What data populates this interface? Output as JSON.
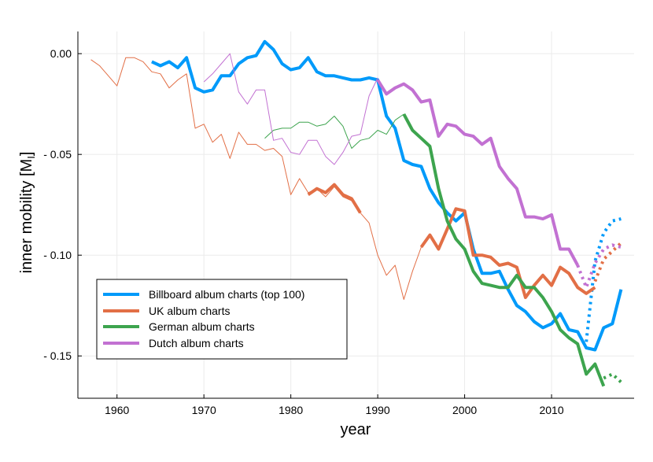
{
  "chart_data": {
    "type": "line",
    "title": "",
    "xlabel": "year",
    "ylabel_main": "inner mobility [M",
    "ylabel_sub": "I",
    "ylabel_close": "]",
    "xlim": [
      1955.5,
      2019.5
    ],
    "ylim": [
      -0.171,
      0.011
    ],
    "xticks": [
      1960,
      1970,
      1980,
      1990,
      2000,
      2010
    ],
    "xtick_labels": [
      "1960",
      "1970",
      "1980",
      "1990",
      "2000",
      "2010"
    ],
    "yticks": [
      0.0,
      -0.05,
      -0.1,
      -0.15
    ],
    "ytick_labels": [
      "0.00",
      "- 0.05",
      "- 0.10",
      "- 0.15"
    ],
    "grid": true,
    "legend_position": "bottom-left",
    "series": [
      {
        "name": "Billboard album charts (top 100)",
        "color": "#009AFA",
        "thin": [],
        "thick": [
          [
            1964,
            -0.004
          ],
          [
            1965,
            -0.006
          ],
          [
            1966,
            -0.004
          ],
          [
            1967,
            -0.007
          ],
          [
            1968,
            -0.002
          ],
          [
            1969,
            -0.017
          ],
          [
            1970,
            -0.019
          ],
          [
            1971,
            -0.018
          ],
          [
            1972,
            -0.011
          ],
          [
            1973,
            -0.011
          ],
          [
            1974,
            -0.005
          ],
          [
            1975,
            -0.002
          ],
          [
            1976,
            -0.001
          ],
          [
            1977,
            0.006
          ],
          [
            1978,
            0.002
          ],
          [
            1979,
            -0.005
          ],
          [
            1980,
            -0.008
          ],
          [
            1981,
            -0.007
          ],
          [
            1982,
            -0.002
          ],
          [
            1983,
            -0.009
          ],
          [
            1984,
            -0.011
          ],
          [
            1985,
            -0.011
          ],
          [
            1986,
            -0.012
          ],
          [
            1987,
            -0.013
          ],
          [
            1988,
            -0.013
          ],
          [
            1989,
            -0.012
          ],
          [
            1990,
            -0.013
          ],
          [
            1991,
            -0.031
          ],
          [
            1992,
            -0.037
          ],
          [
            1993,
            -0.053
          ],
          [
            1994,
            -0.055
          ],
          [
            1995,
            -0.056
          ],
          [
            1996,
            -0.067
          ],
          [
            1997,
            -0.074
          ],
          [
            1998,
            -0.079
          ],
          [
            1999,
            -0.083
          ],
          [
            2000,
            -0.079
          ],
          [
            2001,
            -0.097
          ],
          [
            2002,
            -0.109
          ],
          [
            2003,
            -0.109
          ],
          [
            2004,
            -0.108
          ],
          [
            2005,
            -0.117
          ],
          [
            2006,
            -0.125
          ],
          [
            2007,
            -0.128
          ],
          [
            2008,
            -0.133
          ],
          [
            2009,
            -0.136
          ],
          [
            2010,
            -0.134
          ],
          [
            2011,
            -0.129
          ],
          [
            2012,
            -0.137
          ],
          [
            2013,
            -0.138
          ],
          [
            2014,
            -0.146
          ],
          [
            2015,
            -0.147
          ],
          [
            2016,
            -0.136
          ],
          [
            2017,
            -0.134
          ],
          [
            2018,
            -0.117
          ]
        ],
        "dotted": [
          [
            2014,
            -0.143
          ],
          [
            2015,
            -0.103
          ],
          [
            2016,
            -0.089
          ],
          [
            2017,
            -0.083
          ],
          [
            2018,
            -0.082
          ]
        ]
      },
      {
        "name": "UK album charts",
        "color": "#E26F46",
        "thin": [
          [
            1957,
            -0.003
          ],
          [
            1958,
            -0.006
          ],
          [
            1959,
            -0.011
          ],
          [
            1960,
            -0.016
          ],
          [
            1961,
            -0.002
          ],
          [
            1962,
            -0.002
          ],
          [
            1963,
            -0.004
          ],
          [
            1964,
            -0.009
          ],
          [
            1965,
            -0.01
          ],
          [
            1966,
            -0.017
          ],
          [
            1967,
            -0.013
          ],
          [
            1968,
            -0.01
          ],
          [
            1969,
            -0.037
          ],
          [
            1970,
            -0.035
          ],
          [
            1971,
            -0.044
          ],
          [
            1972,
            -0.04
          ],
          [
            1973,
            -0.052
          ],
          [
            1974,
            -0.039
          ],
          [
            1975,
            -0.045
          ],
          [
            1976,
            -0.045
          ],
          [
            1977,
            -0.048
          ],
          [
            1978,
            -0.047
          ],
          [
            1979,
            -0.051
          ],
          [
            1980,
            -0.07
          ],
          [
            1981,
            -0.062
          ],
          [
            1982,
            -0.069
          ],
          [
            1983,
            -0.067
          ],
          [
            1984,
            -0.071
          ],
          [
            1985,
            -0.066
          ],
          [
            1986,
            -0.071
          ],
          [
            1987,
            -0.073
          ],
          [
            1988,
            -0.079
          ],
          [
            1989,
            -0.084
          ],
          [
            1990,
            -0.1
          ],
          [
            1991,
            -0.11
          ],
          [
            1992,
            -0.105
          ],
          [
            1993,
            -0.122
          ],
          [
            1994,
            -0.108
          ],
          [
            1995,
            -0.096
          ]
        ],
        "thick": [
          [
            1982,
            -0.07
          ],
          [
            1983,
            -0.067
          ],
          [
            1984,
            -0.069
          ],
          [
            1985,
            -0.065
          ],
          [
            1986,
            -0.07
          ],
          [
            1987,
            -0.072
          ],
          [
            1988,
            -0.079
          ],
          [
            null,
            null
          ],
          [
            1995,
            -0.096
          ],
          [
            1996,
            -0.09
          ],
          [
            1997,
            -0.097
          ],
          [
            1998,
            -0.087
          ],
          [
            1999,
            -0.077
          ],
          [
            2000,
            -0.078
          ],
          [
            2001,
            -0.1
          ],
          [
            2002,
            -0.1
          ],
          [
            2003,
            -0.101
          ],
          [
            2004,
            -0.105
          ],
          [
            2005,
            -0.104
          ],
          [
            2006,
            -0.106
          ],
          [
            2007,
            -0.121
          ],
          [
            2008,
            -0.115
          ],
          [
            2009,
            -0.11
          ],
          [
            2010,
            -0.115
          ],
          [
            2011,
            -0.106
          ],
          [
            2012,
            -0.109
          ],
          [
            2013,
            -0.116
          ],
          [
            2014,
            -0.119
          ],
          [
            2015,
            -0.116
          ]
        ],
        "dotted": [
          [
            2015,
            -0.113
          ],
          [
            2016,
            -0.102
          ],
          [
            2017,
            -0.098
          ],
          [
            2018,
            -0.094
          ]
        ]
      },
      {
        "name": "German album charts",
        "color": "#3DA44E",
        "thin": [
          [
            1977,
            -0.042
          ],
          [
            1978,
            -0.038
          ],
          [
            1979,
            -0.037
          ],
          [
            1980,
            -0.037
          ],
          [
            1981,
            -0.034
          ],
          [
            1982,
            -0.034
          ],
          [
            1983,
            -0.036
          ],
          [
            1984,
            -0.035
          ],
          [
            1985,
            -0.031
          ],
          [
            1986,
            -0.036
          ],
          [
            1987,
            -0.047
          ],
          [
            1988,
            -0.043
          ],
          [
            1989,
            -0.042
          ],
          [
            1990,
            -0.038
          ],
          [
            1991,
            -0.04
          ],
          [
            1992,
            -0.033
          ],
          [
            1993,
            -0.03
          ]
        ],
        "thick": [
          [
            1993,
            -0.03
          ],
          [
            1994,
            -0.038
          ],
          [
            1995,
            -0.042
          ],
          [
            1996,
            -0.046
          ],
          [
            1997,
            -0.067
          ],
          [
            1998,
            -0.083
          ],
          [
            1999,
            -0.092
          ],
          [
            2000,
            -0.097
          ],
          [
            2001,
            -0.108
          ],
          [
            2002,
            -0.114
          ],
          [
            2003,
            -0.115
          ],
          [
            2004,
            -0.116
          ],
          [
            2005,
            -0.116
          ],
          [
            2006,
            -0.11
          ],
          [
            2007,
            -0.116
          ],
          [
            2008,
            -0.116
          ],
          [
            2009,
            -0.121
          ],
          [
            2010,
            -0.128
          ],
          [
            2011,
            -0.137
          ],
          [
            2012,
            -0.141
          ],
          [
            2013,
            -0.144
          ],
          [
            2014,
            -0.159
          ],
          [
            2015,
            -0.154
          ],
          [
            2016,
            -0.165
          ]
        ],
        "dotted": [
          [
            2016,
            -0.161
          ],
          [
            2017,
            -0.159
          ],
          [
            2018,
            -0.163
          ]
        ]
      },
      {
        "name": "Dutch album charts",
        "color": "#C271D2",
        "thin": [
          [
            1970,
            -0.014
          ],
          [
            1971,
            -0.01
          ],
          [
            1972,
            -0.005
          ],
          [
            1973,
            0.0
          ],
          [
            1974,
            -0.019
          ],
          [
            1975,
            -0.025
          ],
          [
            1976,
            -0.018
          ],
          [
            1977,
            -0.018
          ],
          [
            1978,
            -0.043
          ],
          [
            1979,
            -0.042
          ],
          [
            1980,
            -0.049
          ],
          [
            1981,
            -0.05
          ],
          [
            1982,
            -0.043
          ],
          [
            1983,
            -0.043
          ],
          [
            1984,
            -0.051
          ],
          [
            1985,
            -0.055
          ],
          [
            1986,
            -0.049
          ],
          [
            1987,
            -0.041
          ],
          [
            1988,
            -0.04
          ],
          [
            1989,
            -0.021
          ],
          [
            1990,
            -0.012
          ]
        ],
        "thick": [
          [
            1990,
            -0.013
          ],
          [
            1991,
            -0.02
          ],
          [
            1992,
            -0.017
          ],
          [
            1993,
            -0.015
          ],
          [
            1994,
            -0.018
          ],
          [
            1995,
            -0.024
          ],
          [
            1996,
            -0.023
          ],
          [
            1997,
            -0.041
          ],
          [
            1998,
            -0.035
          ],
          [
            1999,
            -0.036
          ],
          [
            2000,
            -0.04
          ],
          [
            2001,
            -0.041
          ],
          [
            2002,
            -0.045
          ],
          [
            2003,
            -0.042
          ],
          [
            2004,
            -0.056
          ],
          [
            2005,
            -0.062
          ],
          [
            2006,
            -0.067
          ],
          [
            2007,
            -0.081
          ],
          [
            2008,
            -0.081
          ],
          [
            2009,
            -0.082
          ],
          [
            2010,
            -0.08
          ],
          [
            2011,
            -0.097
          ],
          [
            2012,
            -0.097
          ],
          [
            2013,
            -0.105
          ]
        ],
        "dotted": [
          [
            2013,
            -0.105
          ],
          [
            2014,
            -0.116
          ],
          [
            2015,
            -0.104
          ],
          [
            2016,
            -0.097
          ],
          [
            2017,
            -0.095
          ],
          [
            2018,
            -0.096
          ]
        ]
      }
    ]
  }
}
